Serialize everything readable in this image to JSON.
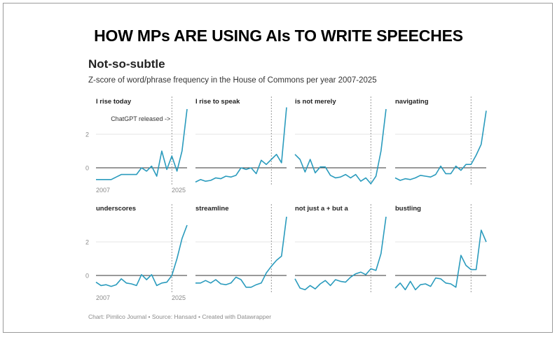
{
  "headline": "HOW MPs ARE USING AIs TO WRITE SPEECHES",
  "title": "Not-so-subtle",
  "subtitle": "Z-score of word/phrase frequency in the House of Commons per year 2007-2025",
  "footer": "Chart: Pimlico Journal • Source: Hansard • Created with Datawrapper",
  "colors": {
    "line": "#2a9bbd",
    "zero": "#333333",
    "grid": "#e6e6e6",
    "marker": "#9a9a9a",
    "tick": "#8a8a8a"
  },
  "chart_data": {
    "type": "line",
    "x": [
      2007,
      2008,
      2009,
      2010,
      2011,
      2012,
      2013,
      2014,
      2015,
      2016,
      2017,
      2018,
      2019,
      2020,
      2021,
      2022,
      2023,
      2024,
      2025
    ],
    "ylim": [
      -1,
      4
    ],
    "yticks": [
      "0",
      "2"
    ],
    "xtick_labels": [
      "2007",
      "2025"
    ],
    "marker": {
      "x": 2022,
      "label": "ChatGPT released ->"
    },
    "series": [
      {
        "name": "I rise today",
        "values": [
          -0.7,
          -0.7,
          -0.7,
          -0.7,
          -0.55,
          -0.4,
          -0.4,
          -0.4,
          -0.4,
          0.0,
          -0.2,
          0.1,
          -0.5,
          1.0,
          -0.1,
          0.7,
          -0.2,
          1.0,
          3.5
        ]
      },
      {
        "name": "I rise to speak",
        "values": [
          -0.85,
          -0.7,
          -0.8,
          -0.75,
          -0.6,
          -0.65,
          -0.5,
          -0.55,
          -0.45,
          0.0,
          -0.1,
          0.0,
          -0.35,
          0.45,
          0.2,
          0.5,
          0.8,
          0.3,
          3.6
        ]
      },
      {
        "name": "is not merely",
        "values": [
          0.8,
          0.5,
          -0.25,
          0.5,
          -0.3,
          0.05,
          0.05,
          -0.45,
          -0.6,
          -0.55,
          -0.4,
          -0.6,
          -0.4,
          -0.8,
          -0.6,
          -0.95,
          -0.5,
          1.0,
          3.5
        ]
      },
      {
        "name": "navigating",
        "values": [
          -0.6,
          -0.75,
          -0.65,
          -0.7,
          -0.6,
          -0.45,
          -0.5,
          -0.55,
          -0.4,
          0.1,
          -0.35,
          -0.35,
          0.1,
          -0.15,
          0.2,
          0.2,
          0.75,
          1.4,
          3.4
        ]
      },
      {
        "name": "underscores",
        "values": [
          -0.4,
          -0.6,
          -0.55,
          -0.65,
          -0.55,
          -0.2,
          -0.45,
          -0.5,
          -0.6,
          0.05,
          -0.25,
          0.05,
          -0.6,
          -0.45,
          -0.4,
          0.0,
          1.0,
          2.2,
          3.0
        ]
      },
      {
        "name": "streamline",
        "values": [
          -0.45,
          -0.45,
          -0.3,
          -0.45,
          -0.25,
          -0.5,
          -0.55,
          -0.45,
          -0.1,
          -0.25,
          -0.7,
          -0.7,
          -0.55,
          -0.45,
          0.15,
          0.55,
          0.9,
          1.15,
          3.5
        ]
      },
      {
        "name": "not just a + but a",
        "values": [
          -0.2,
          -0.75,
          -0.85,
          -0.6,
          -0.8,
          -0.5,
          -0.3,
          -0.6,
          -0.25,
          -0.35,
          -0.4,
          -0.1,
          0.1,
          0.2,
          0.05,
          0.4,
          0.3,
          1.3,
          3.5
        ]
      },
      {
        "name": "bustling",
        "values": [
          -0.75,
          -0.45,
          -0.85,
          -0.35,
          -0.85,
          -0.55,
          -0.5,
          -0.65,
          -0.15,
          -0.2,
          -0.45,
          -0.5,
          -0.7,
          1.2,
          0.6,
          0.35,
          0.35,
          2.7,
          2.0
        ]
      }
    ]
  }
}
